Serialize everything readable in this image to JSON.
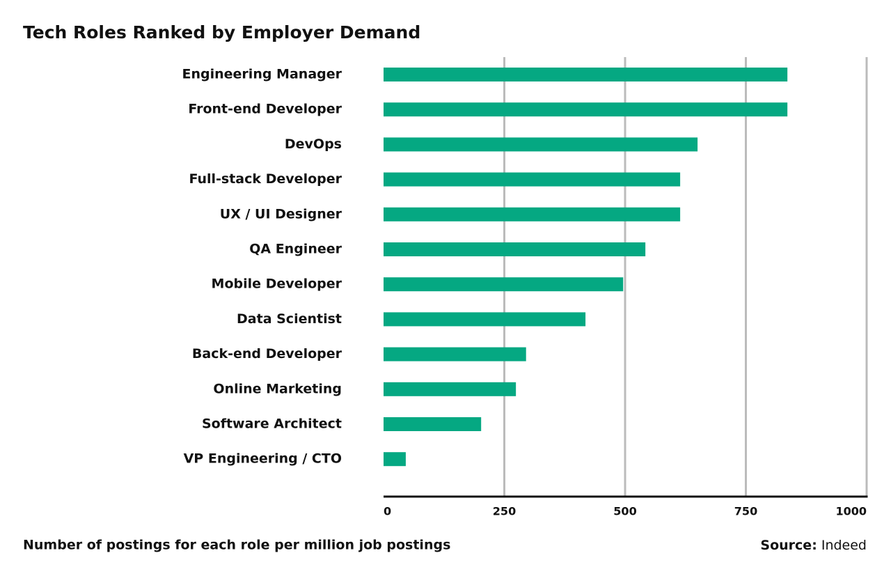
{
  "chart_data": {
    "type": "bar",
    "orientation": "horizontal",
    "title": "Tech Roles Ranked by Employer Demand",
    "x_label": "Number of postings for each role per million job postings",
    "source_label": "Source:",
    "source": "Indeed",
    "categories": [
      "Engineering Manager",
      "Front-end Developer",
      "DevOps",
      "Full-stack Developer",
      "UX / UI Designer",
      "QA Engineer",
      "Mobile Developer",
      "Data Scientist",
      "Back-end Developer",
      "Online Marketing",
      "Software Architect",
      "VP Engineering / CTO"
    ],
    "values": [
      836,
      836,
      650,
      614,
      614,
      542,
      496,
      418,
      295,
      274,
      202,
      46
    ],
    "color": "#05a882",
    "xlim": [
      0,
      1000
    ],
    "xticks": [
      0,
      250,
      500,
      750,
      1000
    ],
    "grid": true
  }
}
